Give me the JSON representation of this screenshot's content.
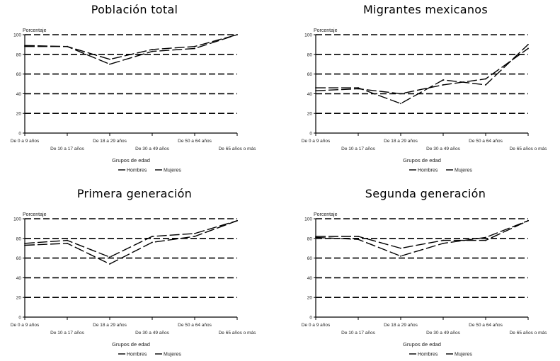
{
  "chart_data": [
    {
      "type": "line",
      "title": "Población total",
      "ylabel": "Porcentaje",
      "xlabel": "Grupos de edad",
      "ylim": [
        0,
        100
      ],
      "yticks": [
        "0",
        "20",
        "40",
        "60",
        "80",
        "100"
      ],
      "grid": true,
      "legend": "bottom",
      "categories": [
        "De 0 a 9 años",
        "De 10 a 17 años",
        "De 18 a 29 años",
        "De 30 a 49 años",
        "De 50 a 64 años",
        "De 65 años o más"
      ],
      "series": [
        {
          "name": "Hombres",
          "values": [
            89,
            88,
            70,
            83,
            86,
            100
          ]
        },
        {
          "name": "Mujeres",
          "values": [
            88,
            88,
            75,
            85,
            88,
            100
          ]
        }
      ]
    },
    {
      "type": "line",
      "title": "Migrantes mexicanos",
      "ylabel": "Porcentaje",
      "xlabel": "Grupos de edad",
      "ylim": [
        0,
        100
      ],
      "yticks": [
        "0",
        "20",
        "40",
        "60",
        "80",
        "100"
      ],
      "grid": true,
      "legend": "bottom",
      "categories": [
        "De 0 a 9 años",
        "De 10 a 17 años",
        "De 18 a 29 años",
        "De 30 a 49 años",
        "De 50 a 64 años",
        "De 65 años o más"
      ],
      "series": [
        {
          "name": "Hombres",
          "values": [
            46,
            46,
            30,
            54,
            49,
            90
          ]
        },
        {
          "name": "Mujeres",
          "values": [
            43,
            45,
            40,
            49,
            55,
            86
          ]
        }
      ]
    },
    {
      "type": "line",
      "title": "Primera generación",
      "ylabel": "Porcentaje",
      "xlabel": "Grupos de edad",
      "ylim": [
        0,
        100
      ],
      "yticks": [
        "0",
        "20",
        "40",
        "60",
        "80",
        "100"
      ],
      "grid": true,
      "legend": "bottom",
      "categories": [
        "De 0 a 9 años",
        "De 10 a 17 años",
        "De 18 a 29 años",
        "De 30 a 49 años",
        "De 50 a 64 años",
        "De 65 años o más"
      ],
      "series": [
        {
          "name": "Hombres",
          "values": [
            73,
            75,
            54,
            76,
            82,
            98
          ]
        },
        {
          "name": "Mujeres",
          "values": [
            75,
            78,
            61,
            82,
            85,
            98
          ]
        }
      ]
    },
    {
      "type": "line",
      "title": "Segunda generación",
      "ylabel": "Porcentaje",
      "xlabel": "Grupos de edad",
      "ylim": [
        0,
        100
      ],
      "yticks": [
        "0",
        "20",
        "40",
        "60",
        "80",
        "100"
      ],
      "grid": true,
      "legend": "bottom",
      "categories": [
        "De 0 a 9 años",
        "De 10 a 17 años",
        "De 18 a 29 años",
        "De 30 a 49 años",
        "De 50 a 64 años",
        "De 65 años o más"
      ],
      "series": [
        {
          "name": "Hombres",
          "values": [
            82,
            82,
            70,
            78,
            78,
            98
          ]
        },
        {
          "name": "Mujeres",
          "values": [
            81,
            79,
            62,
            75,
            81,
            98
          ]
        }
      ]
    }
  ]
}
